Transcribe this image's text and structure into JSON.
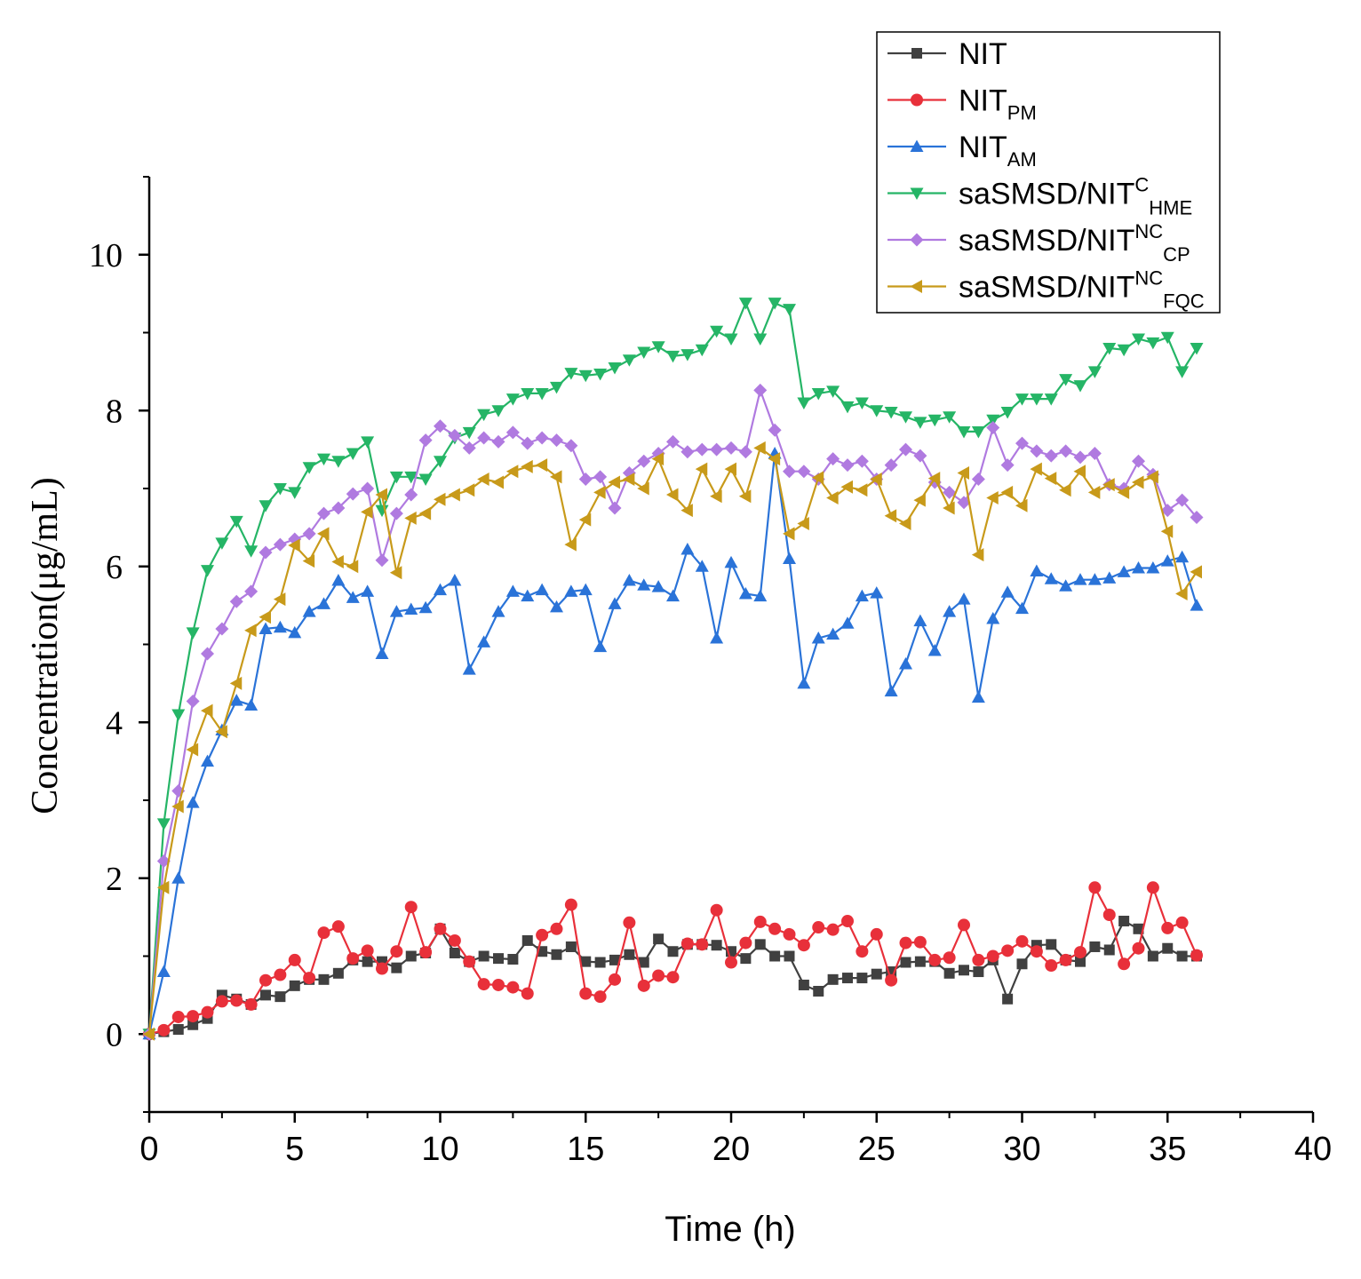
{
  "chart_data": {
    "type": "line",
    "title": "",
    "xlabel": "Time (h)",
    "ylabel": "Concentration(μg/mL)",
    "xlim": [
      0,
      40
    ],
    "ylim": [
      -1,
      11
    ],
    "xticks": [
      0,
      5,
      10,
      15,
      20,
      25,
      30,
      35,
      40
    ],
    "xtick_labels": [
      "0",
      "5",
      "10",
      "15",
      "20",
      "25",
      "30",
      "35",
      "40"
    ],
    "yticks": [
      0,
      2,
      4,
      6,
      8,
      10
    ],
    "ytick_labels": [
      "0",
      "2",
      "4",
      "6",
      "8",
      "10"
    ],
    "grid": false,
    "legend_position": "top-right",
    "x": [
      0,
      0.5,
      1,
      1.5,
      2,
      2.5,
      3,
      3.5,
      4,
      4.5,
      5,
      5.5,
      6,
      6.5,
      7,
      7.5,
      8,
      8.5,
      9,
      9.5,
      10,
      10.5,
      11,
      11.5,
      12,
      12.5,
      13,
      13.5,
      14,
      14.5,
      15,
      15.5,
      16,
      16.5,
      17,
      17.5,
      18,
      18.5,
      19,
      19.5,
      20,
      20.5,
      21,
      21.5,
      22,
      22.5,
      23,
      23.5,
      24,
      24.5,
      25,
      25.5,
      26,
      26.5,
      27,
      27.5,
      28,
      28.5,
      29,
      29.5,
      30,
      30.5,
      31,
      31.5,
      32,
      32.5,
      33,
      33.5,
      34,
      34.5,
      35,
      35.5,
      36
    ],
    "series": [
      {
        "name": "NIT",
        "label_main": "NIT",
        "label_sup": "",
        "label_sub": "",
        "color": "#404040",
        "marker": "square",
        "values": [
          0,
          0.03,
          0.06,
          0.12,
          0.2,
          0.5,
          0.45,
          0.38,
          0.5,
          0.48,
          0.62,
          0.7,
          0.7,
          0.78,
          0.95,
          0.93,
          0.93,
          0.85,
          1.0,
          1.04,
          1.35,
          1.04,
          0.93,
          1.0,
          0.97,
          0.96,
          1.2,
          1.06,
          1.02,
          1.12,
          0.93,
          0.92,
          0.95,
          1.02,
          0.92,
          1.22,
          1.06,
          1.15,
          1.15,
          1.14,
          1.06,
          0.97,
          1.15,
          1.0,
          1.0,
          0.63,
          0.55,
          0.7,
          0.72,
          0.72,
          0.77,
          0.8,
          0.92,
          0.93,
          0.93,
          0.78,
          0.82,
          0.8,
          0.95,
          0.45,
          0.9,
          1.14,
          1.15,
          0.95,
          0.93,
          1.12,
          1.08,
          1.45,
          1.35,
          1.0,
          1.1,
          1.0,
          1.0
        ]
      },
      {
        "name": "NIT_PM",
        "label_main": "NIT",
        "label_sup": "",
        "label_sub": "PM",
        "color": "#e8303a",
        "marker": "circle",
        "values": [
          0,
          0.05,
          0.22,
          0.23,
          0.28,
          0.42,
          0.43,
          0.38,
          0.69,
          0.76,
          0.95,
          0.72,
          1.3,
          1.38,
          0.97,
          1.07,
          0.84,
          1.06,
          1.63,
          1.05,
          1.35,
          1.2,
          0.93,
          0.64,
          0.63,
          0.6,
          0.52,
          1.27,
          1.35,
          1.66,
          0.52,
          0.48,
          0.7,
          1.43,
          0.62,
          0.75,
          0.73,
          1.16,
          1.15,
          1.59,
          0.92,
          1.17,
          1.44,
          1.35,
          1.28,
          1.14,
          1.37,
          1.34,
          1.45,
          1.06,
          1.28,
          0.69,
          1.17,
          1.18,
          0.95,
          0.98,
          1.4,
          0.95,
          1.0,
          1.07,
          1.19,
          1.06,
          0.88,
          0.95,
          1.05,
          1.88,
          1.53,
          0.9,
          1.1,
          1.88,
          1.36,
          1.43,
          1.01
        ]
      },
      {
        "name": "NIT_AM",
        "label_main": "NIT",
        "label_sup": "",
        "label_sub": "AM",
        "color": "#2a73d8",
        "marker": "triangle-up",
        "values": [
          0,
          0.8,
          2.0,
          2.97,
          3.5,
          3.9,
          4.28,
          4.22,
          5.2,
          5.22,
          5.15,
          5.42,
          5.52,
          5.82,
          5.6,
          5.68,
          4.88,
          5.42,
          5.45,
          5.47,
          5.7,
          5.82,
          4.68,
          5.03,
          5.42,
          5.68,
          5.62,
          5.7,
          5.48,
          5.68,
          5.7,
          4.97,
          5.52,
          5.82,
          5.76,
          5.74,
          5.62,
          6.22,
          6.0,
          5.08,
          6.05,
          5.65,
          5.62,
          7.45,
          6.1,
          4.5,
          5.08,
          5.13,
          5.27,
          5.62,
          5.66,
          4.4,
          4.75,
          5.3,
          4.92,
          5.42,
          5.58,
          4.32,
          5.33,
          5.67,
          5.46,
          5.94,
          5.84,
          5.75,
          5.83,
          5.83,
          5.85,
          5.93,
          5.98,
          5.98,
          6.07,
          6.12,
          5.5
        ]
      },
      {
        "name": "saSMSD/NIT^C_HME",
        "label_main": "saSMSD/NIT",
        "label_sup": "C",
        "label_sub": "HME",
        "color": "#25b566",
        "marker": "triangle-down",
        "values": [
          0,
          2.7,
          4.1,
          5.15,
          5.95,
          6.3,
          6.58,
          6.2,
          6.78,
          7.0,
          6.95,
          7.27,
          7.38,
          7.35,
          7.45,
          7.6,
          6.72,
          7.15,
          7.15,
          7.12,
          7.35,
          7.65,
          7.72,
          7.95,
          8.0,
          8.15,
          8.22,
          8.22,
          8.3,
          8.48,
          8.45,
          8.47,
          8.55,
          8.65,
          8.75,
          8.82,
          8.7,
          8.72,
          8.78,
          9.02,
          8.92,
          9.38,
          8.92,
          9.38,
          9.3,
          8.1,
          8.22,
          8.25,
          8.05,
          8.1,
          8.0,
          7.98,
          7.92,
          7.85,
          7.88,
          7.92,
          7.73,
          7.73,
          7.88,
          7.98,
          8.15,
          8.15,
          8.15,
          8.4,
          8.32,
          8.5,
          8.8,
          8.78,
          8.92,
          8.87,
          8.94,
          8.5,
          8.8
        ]
      },
      {
        "name": "saSMSD/NIT^NC_CP",
        "label_main": "saSMSD/NIT",
        "label_sup": "NC",
        "label_sub": "CP",
        "color": "#b07ae0",
        "marker": "diamond",
        "values": [
          0,
          2.22,
          3.12,
          4.27,
          4.88,
          5.2,
          5.55,
          5.68,
          6.18,
          6.28,
          6.35,
          6.42,
          6.68,
          6.75,
          6.93,
          7.0,
          6.08,
          6.68,
          6.92,
          7.62,
          7.8,
          7.68,
          7.52,
          7.65,
          7.6,
          7.72,
          7.58,
          7.65,
          7.62,
          7.55,
          7.12,
          7.15,
          6.75,
          7.2,
          7.35,
          7.45,
          7.6,
          7.47,
          7.5,
          7.5,
          7.52,
          7.47,
          8.26,
          7.75,
          7.22,
          7.22,
          7.12,
          7.38,
          7.3,
          7.35,
          7.12,
          7.3,
          7.5,
          7.42,
          7.08,
          6.95,
          6.82,
          7.12,
          7.78,
          7.3,
          7.58,
          7.48,
          7.42,
          7.48,
          7.4,
          7.45,
          7.05,
          7.0,
          7.35,
          7.18,
          6.72,
          6.85,
          6.63
        ]
      },
      {
        "name": "saSMSD/NIT^NC_FQC",
        "label_main": "saSMSD/NIT",
        "label_sup": "NC",
        "label_sub": "FQC",
        "color": "#c89a1a",
        "marker": "triangle-left",
        "values": [
          0,
          1.88,
          2.92,
          3.65,
          4.15,
          3.88,
          4.5,
          5.18,
          5.35,
          5.58,
          6.27,
          6.07,
          6.42,
          6.06,
          6.0,
          6.7,
          6.92,
          5.92,
          6.62,
          6.68,
          6.86,
          6.92,
          6.98,
          7.12,
          7.08,
          7.22,
          7.28,
          7.3,
          7.15,
          6.28,
          6.6,
          6.95,
          7.08,
          7.12,
          7.0,
          7.38,
          6.92,
          6.72,
          7.25,
          6.9,
          7.25,
          6.9,
          7.52,
          7.38,
          6.42,
          6.55,
          7.14,
          6.88,
          7.02,
          6.98,
          7.12,
          6.65,
          6.55,
          6.85,
          7.13,
          6.75,
          7.2,
          6.15,
          6.88,
          6.95,
          6.78,
          7.25,
          7.13,
          6.98,
          7.22,
          6.95,
          7.05,
          6.95,
          7.08,
          7.15,
          6.45,
          5.65,
          5.93
        ]
      }
    ]
  }
}
